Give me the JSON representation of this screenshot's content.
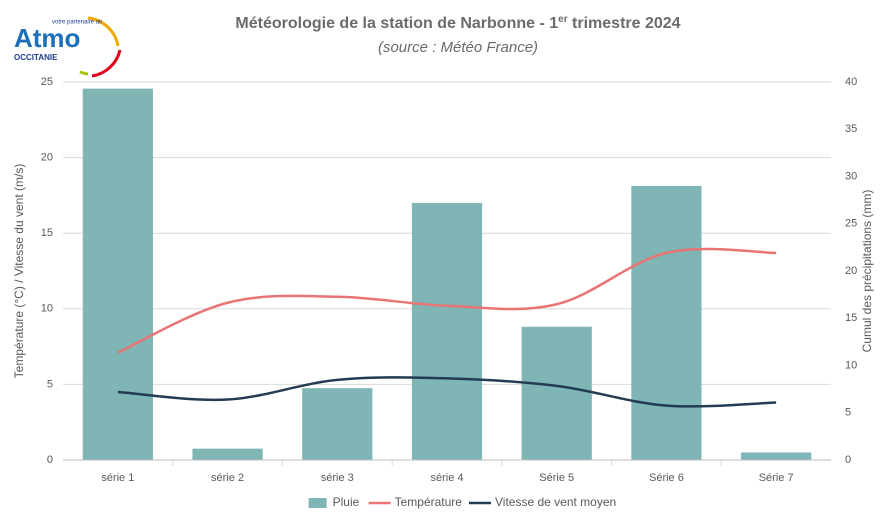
{
  "logo": {
    "name": "Atmo",
    "region": "OCCITANIE",
    "tagline": "votre partenaire air"
  },
  "chart_data": {
    "type": "bar_line",
    "title": [
      "Météorologie de la station de Narbonne - 1",
      "er",
      " trimestre 2024"
    ],
    "subtitle": "(source : Météo France)",
    "y_label": "Température (°C) / Vitesse du vent (m/s)",
    "y2_label": "Cumul des précipitations (mm)",
    "categories": [
      "série 1",
      "série 2",
      "série 3",
      "série 4",
      "Série 5",
      "Série 6",
      "Série 7"
    ],
    "ylim": [
      0,
      25
    ],
    "yticks": [
      0,
      5,
      10,
      15,
      20,
      25
    ],
    "y2lim": [
      0,
      40
    ],
    "y2ticks": [
      0,
      5,
      10,
      15,
      20,
      25,
      30,
      35,
      40
    ],
    "grid": true,
    "legend": "bottom",
    "series": [
      {
        "name": "Pluie",
        "kind": "bar",
        "axis": "y2",
        "color": "#7fb5b5",
        "values": [
          39.3,
          1.2,
          7.6,
          27.2,
          14.1,
          29.0,
          0.8
        ]
      },
      {
        "name": "Température",
        "kind": "line",
        "axis": "y",
        "color": "#e87474",
        "values": [
          7.1,
          10.4,
          10.8,
          10.2,
          10.3,
          13.7,
          13.7
        ]
      },
      {
        "name": "Vitesse de vent moyen",
        "kind": "line",
        "axis": "y",
        "color": "#243b53",
        "values": [
          4.5,
          4.0,
          5.3,
          5.4,
          4.9,
          3.6,
          3.8
        ]
      }
    ]
  }
}
